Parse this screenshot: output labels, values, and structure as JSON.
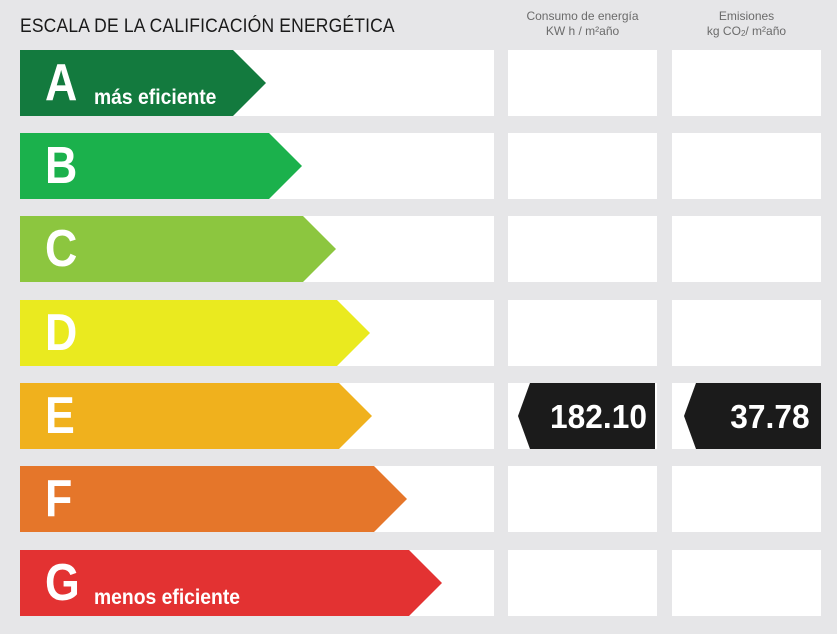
{
  "header": {
    "title": "ESCALA DE LA CALIFICACIÓN ENERGÉTICA",
    "col_consumo_line1": "Consumo de energía",
    "col_consumo_line2": "KW h / m²año",
    "col_emisiones_line1": "Emisiones",
    "col_emisiones_line2_prefix": "kg CO",
    "col_emisiones_line2_sub": "2",
    "col_emisiones_line2_suffix": "/ m²año"
  },
  "ratings": [
    {
      "letter": "A",
      "label": "más eficiente",
      "color": "#137a3e"
    },
    {
      "letter": "B",
      "label": "",
      "color": "#1bb14c"
    },
    {
      "letter": "C",
      "label": "",
      "color": "#8cc63f"
    },
    {
      "letter": "D",
      "label": "",
      "color": "#eaea1f"
    },
    {
      "letter": "E",
      "label": "",
      "color": "#f0b11d"
    },
    {
      "letter": "F",
      "label": "",
      "color": "#e5762a"
    },
    {
      "letter": "G",
      "label": "menos eficiente",
      "color": "#e33232"
    }
  ],
  "result": {
    "rating": "E",
    "consumo_value": "182.10",
    "emisiones_value": "37.78",
    "badge_color": "#1b1b1b"
  }
}
